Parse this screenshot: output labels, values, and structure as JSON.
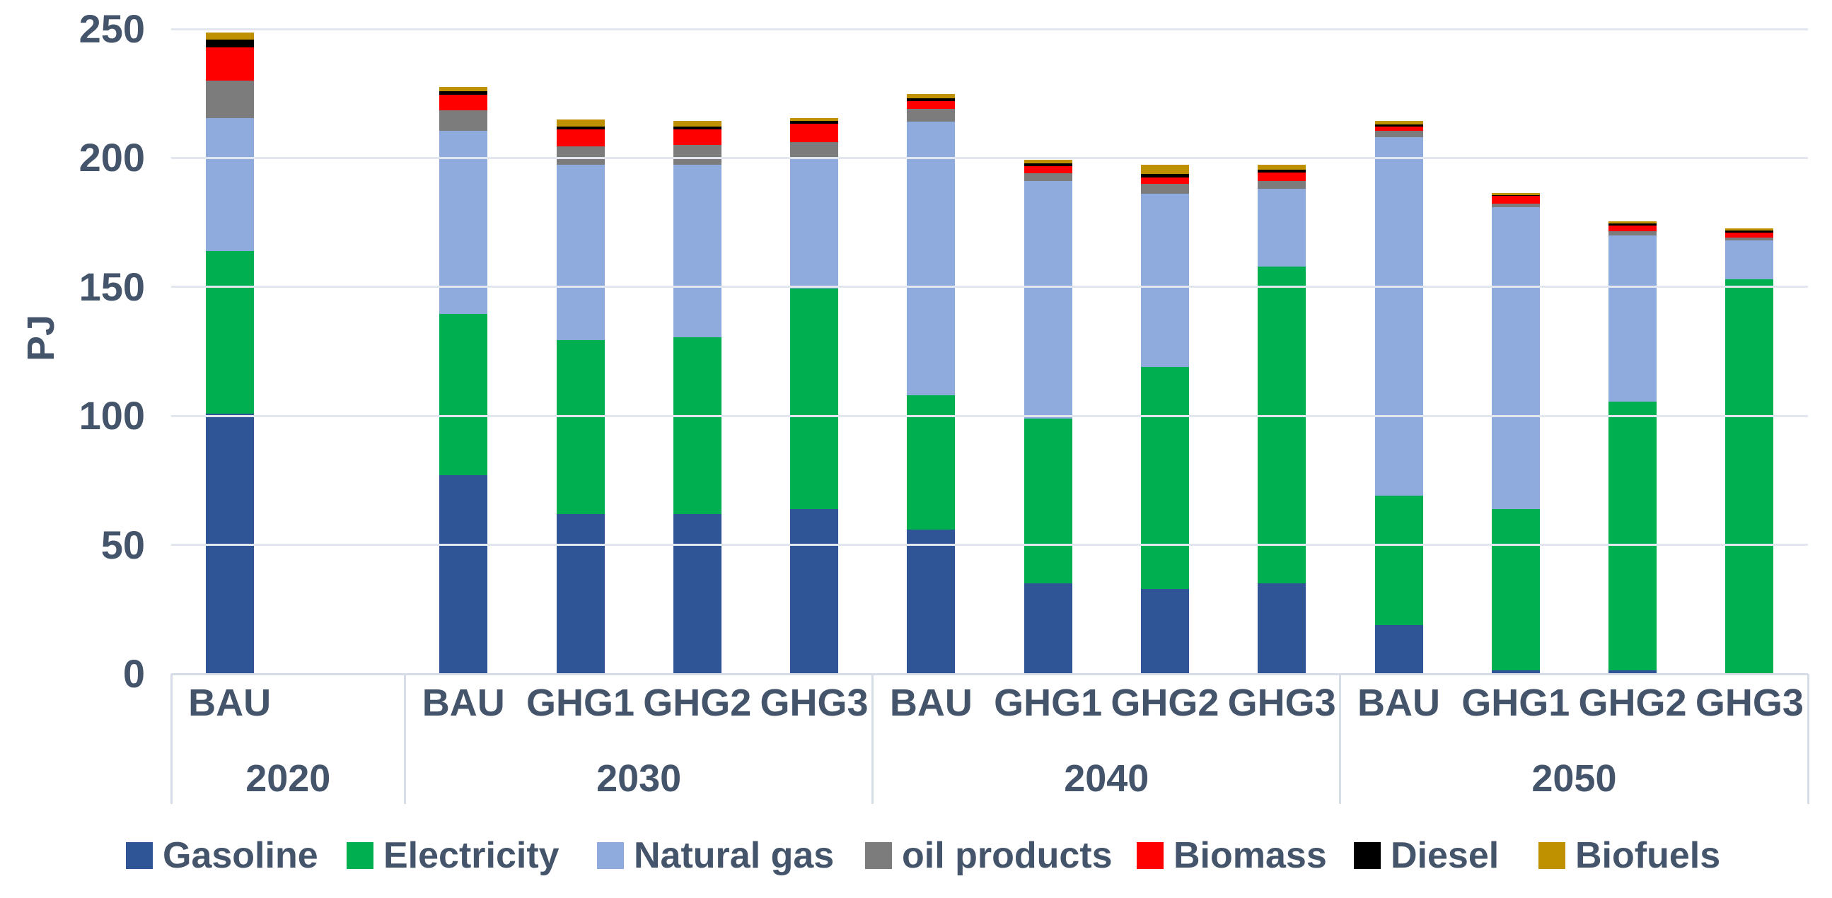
{
  "chart_data": {
    "type": "bar",
    "stacked": true,
    "title": "",
    "xlabel": "",
    "ylabel": "PJ",
    "unit": "PJ",
    "ylim": [
      0,
      250
    ],
    "yticks": [
      0,
      50,
      100,
      150,
      200,
      250
    ],
    "grid": true,
    "legend_position": "bottom",
    "groups": [
      {
        "year": "2020",
        "scenarios": [
          "BAU"
        ]
      },
      {
        "year": "2030",
        "scenarios": [
          "BAU",
          "GHG1",
          "GHG2",
          "GHG3"
        ]
      },
      {
        "year": "2040",
        "scenarios": [
          "BAU",
          "GHG1",
          "GHG2",
          "GHG3"
        ]
      },
      {
        "year": "2050",
        "scenarios": [
          "BAU",
          "GHG1",
          "GHG2",
          "GHG3"
        ]
      }
    ],
    "bar_labels": [
      "2020 BAU",
      "2030 BAU",
      "2030 GHG1",
      "2030 GHG2",
      "2030 GHG3",
      "2040 BAU",
      "2040 GHG1",
      "2040 GHG2",
      "2040 GHG3",
      "2050 BAU",
      "2050 GHG1",
      "2050 GHG2",
      "2050 GHG3"
    ],
    "series": [
      {
        "name": "Gasoline",
        "color": "#2f5597",
        "values": [
          101,
          77,
          62,
          62,
          64,
          56,
          35,
          33,
          35,
          19,
          1.5,
          1.5,
          0
        ]
      },
      {
        "name": "Electricity",
        "color": "#00b050",
        "values": [
          63,
          62.5,
          67.5,
          68.5,
          85.5,
          52,
          64,
          86,
          123,
          50,
          62.5,
          104,
          153
        ]
      },
      {
        "name": "Natural gas",
        "color": "#8faadc",
        "values": [
          51.5,
          71,
          68,
          67,
          50,
          106,
          92,
          67,
          30,
          139,
          117,
          64.5,
          15
        ]
      },
      {
        "name": "oil products",
        "color": "#7c7c7c",
        "values": [
          14.5,
          8,
          7,
          7.5,
          6.7,
          5,
          3,
          4,
          3.1,
          2.5,
          1.4,
          1.7,
          1.2
        ]
      },
      {
        "name": "Biomass",
        "color": "#ff0000",
        "values": [
          13,
          6,
          6.5,
          6,
          7.2,
          3,
          2.7,
          2.4,
          3.3,
          1.7,
          2.8,
          2.1,
          1.9
        ]
      },
      {
        "name": "Diesel",
        "color": "#000000",
        "values": [
          3,
          1.3,
          1.3,
          1.2,
          0.9,
          1.2,
          1.2,
          1.3,
          1,
          0.9,
          0.4,
          0.8,
          0.8
        ]
      },
      {
        "name": "Biofuels",
        "color": "#bf9000",
        "values": [
          2.5,
          1.8,
          2.5,
          2.3,
          1.2,
          1.6,
          1.5,
          3.6,
          2.1,
          1.3,
          0.8,
          0.9,
          0.8
        ]
      }
    ],
    "colors": {
      "label_text": "#44546a",
      "gridline": "#e2e6ee",
      "axis_line": "#d7dde7"
    }
  }
}
